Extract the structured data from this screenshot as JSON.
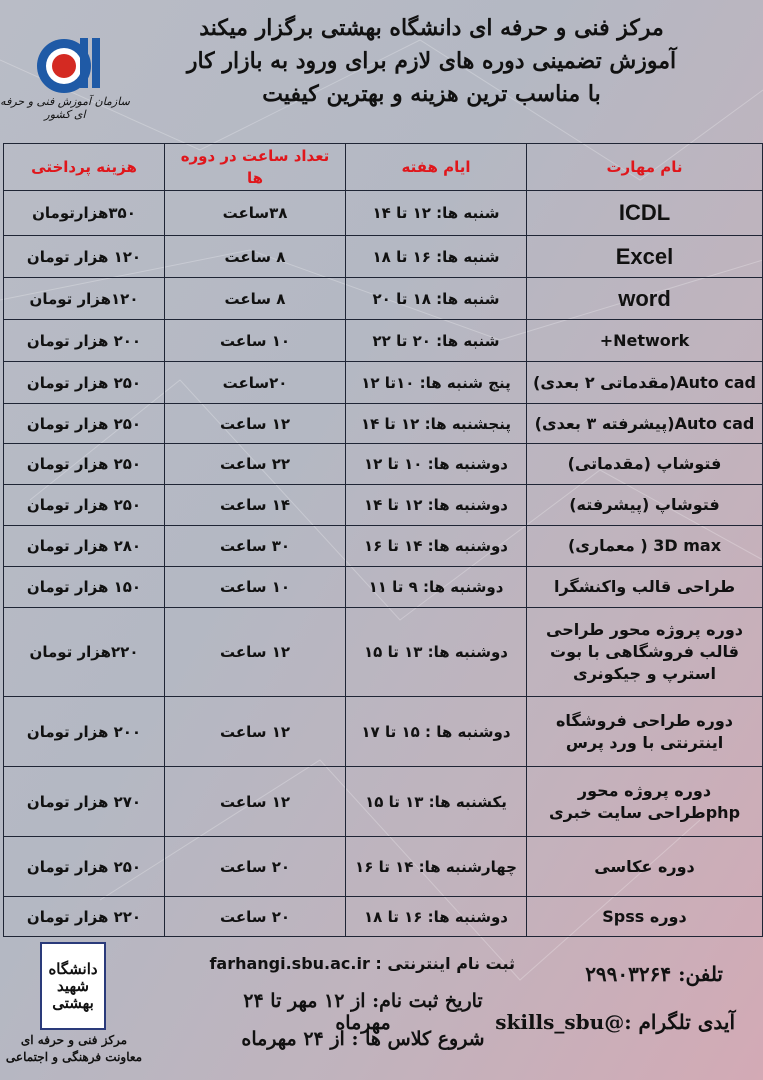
{
  "header": {
    "line1": "مرکز فنی و حرفه ای دانشگاه بهشتی برگزار میکند",
    "line2": "آموزش تضمینی دوره های لازم برای ورود به بازار کار",
    "line3": "با مناسب ترین هزینه و بهترین کیفیت",
    "logo_caption": "سازمان آموزش فنی و حرفه ای کشور"
  },
  "colors": {
    "header_text": "#e0161b",
    "border": "#1f2535",
    "logo_blue": "#1f5aa6",
    "logo_red": "#d42a22"
  },
  "table": {
    "headers": [
      "نام مهارت",
      "ایام هفته",
      "تعداد ساعت در دوره ها",
      "هزینه پرداختی"
    ],
    "rows": [
      [
        "ICDL",
        "شنبه ها: ۱۲ تا ۱۴",
        "۳۸ساعت",
        "۳۵۰هزارتومان"
      ],
      [
        "Excel",
        "شنبه ها: ۱۶ تا ۱۸",
        "۸ ساعت",
        "۱۲۰ هزار تومان"
      ],
      [
        "word",
        "شنبه ها: ۱۸ تا ۲۰",
        "۸ ساعت",
        "۱۲۰هزار تومان"
      ],
      [
        "Network+",
        "شنبه ها: ۲۰ تا ۲۲",
        "۱۰ ساعت",
        "۲۰۰ هزار تومان"
      ],
      [
        "Auto cad(مقدماتی ۲ بعدی)",
        "پنج شنبه ها: ۱۰تا ۱۲",
        "۲۰ساعت",
        "۲۵۰ هزار تومان"
      ],
      [
        "Auto cad(پیشرفته ۳ بعدی)",
        "پنجشنبه ها: ۱۲ تا ۱۴",
        "۱۲ ساعت",
        "۲۵۰ هزار تومان"
      ],
      [
        "فتوشاپ (مقدماتی)",
        "دوشنبه ها: ۱۰ تا ۱۲",
        "۲۲ ساعت",
        "۲۵۰ هزار تومان"
      ],
      [
        "فتوشاپ (پیشرفته)",
        "دوشنبه ها: ۱۲ تا ۱۴",
        "۱۴ ساعت",
        "۲۵۰ هزار تومان"
      ],
      [
        "3D max ( معماری)",
        "دوشنبه ها: ۱۴ تا ۱۶",
        "۳۰ ساعت",
        "۲۸۰ هزار تومان"
      ],
      [
        "طراحی قالب واکنشگرا",
        "دوشنبه ها: ۹ تا ۱۱",
        "۱۰ ساعت",
        "۱۵۰ هزار تومان"
      ],
      [
        "دوره پروژه محور طراحی قالب فروشگاهی با بوت استرپ و جیکونری",
        "دوشنبه ها: ۱۳ تا ۱۵",
        "۱۲ ساعت",
        "۲۲۰هزار تومان"
      ],
      [
        "دوره طراحی فروشگاه اینترنتی با ورد پرس",
        "دوشنبه ها : ۱۵ تا ۱۷",
        "۱۲ ساعت",
        "۲۰۰ هزار تومان"
      ],
      [
        "دوره پروژه محور phpطراحی سایت خبری",
        "یکشنبه ها: ۱۳ تا ۱۵",
        "۱۲ ساعت",
        "۲۷۰ هزار تومان"
      ],
      [
        "دوره عکاسی",
        "چهارشنبه ها: ۱۴ تا ۱۶",
        "۲۰ ساعت",
        "۲۵۰ هزار تومان"
      ],
      [
        "دوره Spss",
        "دوشنبه ها: ۱۶ تا ۱۸",
        "۲۰ ساعت",
        "۲۲۰ هزار تومان"
      ]
    ]
  },
  "footer": {
    "phone": "تلفن: ۲۹۹۰۳۲۶۴",
    "telegram": "آیدی تلگرام :@skills_sbu",
    "online_registration": "ثبت نام اینترنتی : farhangi.sbu.ac.ir",
    "registration_dates": "تاریخ ثبت نام: از ۱۲ مهر تا ۲۴ مهرماه",
    "class_start": "شروع کلاس ها : از ۲۴ مهرماه",
    "university_logo_text": "دانشگاه شهید بهشتی",
    "center_caption_1": "مرکز فنی و حرفه ای",
    "center_caption_2": "معاونت فرهنگی و اجتماعی"
  }
}
